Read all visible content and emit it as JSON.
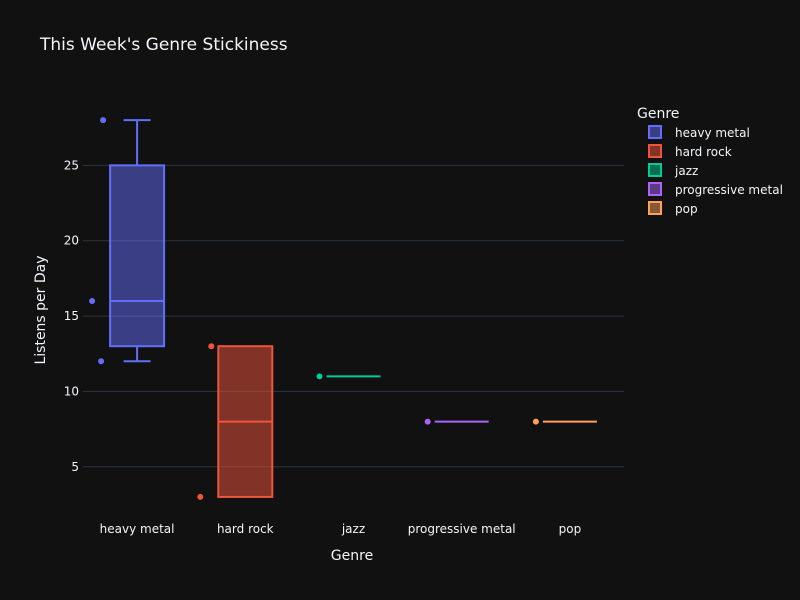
{
  "chart_data": {
    "type": "box",
    "title": "This Week's Genre Stickiness",
    "xlabel": "Genre",
    "ylabel": "Listens per Day",
    "categories": [
      "heavy metal",
      "hard rock",
      "jazz",
      "progressive metal",
      "pop"
    ],
    "ylim": [
      2,
      30
    ],
    "yticks": [
      5,
      10,
      15,
      20,
      25
    ],
    "grid": true,
    "legend": {
      "title": "Genre",
      "placement": "right"
    },
    "series": [
      {
        "name": "heavy metal",
        "color": "#636efa",
        "points": [
          28,
          16,
          12
        ],
        "q1": 13,
        "median": 16,
        "q3": 25,
        "lower_fence": 12,
        "upper_fence": 28
      },
      {
        "name": "hard rock",
        "color": "#ef553b",
        "points": [
          13,
          3
        ],
        "q1": 3,
        "median": 8,
        "q3": 13,
        "lower_fence": 3,
        "upper_fence": 13
      },
      {
        "name": "jazz",
        "color": "#00cc96",
        "points": [
          11
        ],
        "q1": 11,
        "median": 11,
        "q3": 11,
        "lower_fence": 11,
        "upper_fence": 11
      },
      {
        "name": "progressive metal",
        "color": "#ab63fa",
        "points": [
          8
        ],
        "q1": 8,
        "median": 8,
        "q3": 8,
        "lower_fence": 8,
        "upper_fence": 8
      },
      {
        "name": "pop",
        "color": "#ffa15a",
        "points": [
          8
        ],
        "q1": 8,
        "median": 8,
        "q3": 8,
        "lower_fence": 8,
        "upper_fence": 8
      }
    ]
  }
}
